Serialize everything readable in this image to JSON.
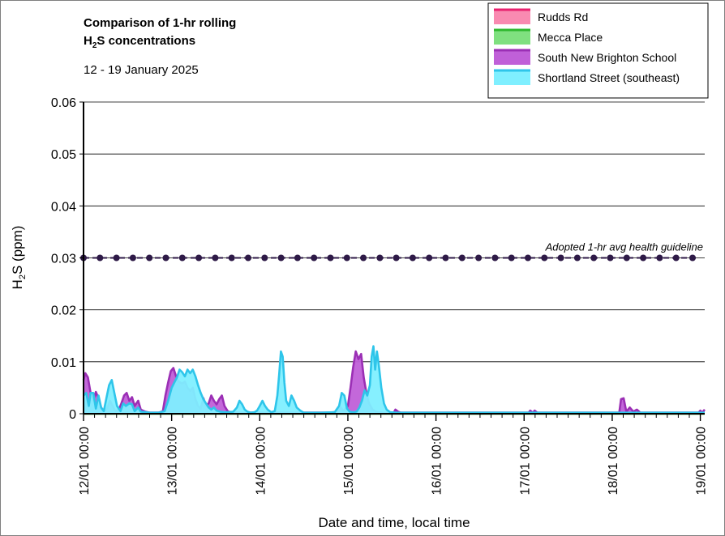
{
  "chart_data": {
    "type": "area",
    "title_line1": "Comparison of 1-hr rolling",
    "title_line2_prefix": "H",
    "title_line2_sub": "2",
    "title_line2_suffix": "S concentrations",
    "subtitle": "12 - 19 January 2025",
    "xlabel": "Date and time, local time",
    "ylabel_prefix": "H",
    "ylabel_sub": "2",
    "ylabel_suffix": "S (ppm)",
    "xlim": [
      0,
      7.05
    ],
    "ylim": [
      0,
      0.06
    ],
    "yticks": [
      0,
      0.01,
      0.02,
      0.03,
      0.04,
      0.05,
      0.06
    ],
    "ytick_labels": [
      "0",
      "0.01",
      "0.02",
      "0.03",
      "0.04",
      "0.05",
      "0.06"
    ],
    "xticks": [
      0,
      1,
      2,
      3,
      4,
      5,
      6,
      7
    ],
    "xtick_labels": [
      "12/01 00:00",
      "13/01 00:00",
      "14/01 00:00",
      "15/01 00:00",
      "16/01 00:00",
      "17/01 00:00",
      "18/01 00:00",
      "19/01 00:00"
    ],
    "grid": "horizontal",
    "legend_position": "top-right",
    "guideline": {
      "label": "Adopted 1-hr avg health guideline",
      "value": 0.03,
      "color": "#2e1a47"
    },
    "series": [
      {
        "name": "Rudds Rd",
        "fill": "#f98ab1",
        "stroke": "#e8216e",
        "points": [
          [
            0,
            0.0002
          ],
          [
            7.05,
            0.0002
          ]
        ]
      },
      {
        "name": "Mecca Place",
        "fill": "#7fe07f",
        "stroke": "#2eb82e",
        "points": [
          [
            0,
            0
          ],
          [
            7.05,
            0
          ]
        ]
      },
      {
        "name": "South New Brighton School",
        "fill": "#c060d8",
        "stroke": "#9b2fb5",
        "points": [
          [
            0,
            0.0065
          ],
          [
            0.02,
            0.0078
          ],
          [
            0.05,
            0.007
          ],
          [
            0.08,
            0.004
          ],
          [
            0.11,
            0.0025
          ],
          [
            0.14,
            0.0042
          ],
          [
            0.17,
            0.003
          ],
          [
            0.2,
            0.0012
          ],
          [
            0.23,
            0.0005
          ],
          [
            0.27,
            0.001
          ],
          [
            0.3,
            0.0025
          ],
          [
            0.33,
            0.0015
          ],
          [
            0.36,
            0.0005
          ],
          [
            0.4,
            0.0008
          ],
          [
            0.43,
            0.002
          ],
          [
            0.46,
            0.0035
          ],
          [
            0.49,
            0.004
          ],
          [
            0.52,
            0.0025
          ],
          [
            0.55,
            0.0032
          ],
          [
            0.58,
            0.0015
          ],
          [
            0.62,
            0.0025
          ],
          [
            0.65,
            0.0008
          ],
          [
            0.7,
            0.0004
          ],
          [
            0.75,
            0.0002
          ],
          [
            0.85,
            0.0002
          ],
          [
            0.9,
            0.0005
          ],
          [
            0.93,
            0.0035
          ],
          [
            0.96,
            0.006
          ],
          [
            0.99,
            0.0082
          ],
          [
            1.02,
            0.0088
          ],
          [
            1.05,
            0.0072
          ],
          [
            1.08,
            0.0062
          ],
          [
            1.12,
            0.0058
          ],
          [
            1.15,
            0.0062
          ],
          [
            1.18,
            0.005
          ],
          [
            1.21,
            0.0044
          ],
          [
            1.24,
            0.005
          ],
          [
            1.27,
            0.0028
          ],
          [
            1.3,
            0.0015
          ],
          [
            1.33,
            0.001
          ],
          [
            1.36,
            0.003
          ],
          [
            1.39,
            0.0015
          ],
          [
            1.42,
            0.002
          ],
          [
            1.45,
            0.0035
          ],
          [
            1.48,
            0.0025
          ],
          [
            1.51,
            0.0018
          ],
          [
            1.54,
            0.0028
          ],
          [
            1.57,
            0.0035
          ],
          [
            1.6,
            0.0015
          ],
          [
            1.64,
            0.0004
          ],
          [
            1.75,
            0.0002
          ],
          [
            2.0,
            0.0002
          ],
          [
            2.2,
            0.0002
          ],
          [
            2.5,
            0.0002
          ],
          [
            2.8,
            0.0002
          ],
          [
            2.88,
            0.0004
          ],
          [
            2.92,
            0.0012
          ],
          [
            2.95,
            0.0005
          ],
          [
            3.0,
            0.0015
          ],
          [
            3.03,
            0.005
          ],
          [
            3.06,
            0.009
          ],
          [
            3.09,
            0.012
          ],
          [
            3.12,
            0.0105
          ],
          [
            3.15,
            0.0115
          ],
          [
            3.18,
            0.007
          ],
          [
            3.21,
            0.004
          ],
          [
            3.24,
            0.002
          ],
          [
            3.28,
            0.0008
          ],
          [
            3.32,
            0.0004
          ],
          [
            3.4,
            0.0002
          ],
          [
            3.52,
            0.0002
          ],
          [
            3.54,
            0.0008
          ],
          [
            3.57,
            0.0004
          ],
          [
            3.6,
            0.0002
          ],
          [
            4.5,
            0.0002
          ],
          [
            5.05,
            0.0002
          ],
          [
            5.07,
            0.0006
          ],
          [
            5.1,
            0.0002
          ],
          [
            5.12,
            0.0006
          ],
          [
            5.15,
            0.0002
          ],
          [
            5.2,
            0.0002
          ],
          [
            5.95,
            0.0002
          ],
          [
            6.08,
            0.0002
          ],
          [
            6.1,
            0.0028
          ],
          [
            6.13,
            0.003
          ],
          [
            6.16,
            0.0004
          ],
          [
            6.2,
            0.0012
          ],
          [
            6.24,
            0.0004
          ],
          [
            6.28,
            0.0008
          ],
          [
            6.32,
            0.0002
          ],
          [
            6.9,
            0.0002
          ],
          [
            6.98,
            0.0002
          ],
          [
            7.0,
            0.0006
          ],
          [
            7.02,
            0.0002
          ],
          [
            7.05,
            0.0008
          ]
        ]
      },
      {
        "name": "Shortland Street (southeast)",
        "fill": "#7fefff",
        "stroke": "#2ec5ea",
        "points": [
          [
            0,
            0.0035
          ],
          [
            0.03,
            0.004
          ],
          [
            0.06,
            0.0015
          ],
          [
            0.08,
            0.004
          ],
          [
            0.11,
            0.004
          ],
          [
            0.14,
            0.001
          ],
          [
            0.17,
            0.0035
          ],
          [
            0.2,
            0.0012
          ],
          [
            0.23,
            0.0005
          ],
          [
            0.26,
            0.003
          ],
          [
            0.29,
            0.0055
          ],
          [
            0.32,
            0.0065
          ],
          [
            0.35,
            0.004
          ],
          [
            0.38,
            0.0015
          ],
          [
            0.42,
            0.0005
          ],
          [
            0.45,
            0.002
          ],
          [
            0.48,
            0.0015
          ],
          [
            0.52,
            0.002
          ],
          [
            0.55,
            0.0018
          ],
          [
            0.58,
            0.0005
          ],
          [
            0.62,
            0.0012
          ],
          [
            0.65,
            0.0004
          ],
          [
            0.7,
            0.0003
          ],
          [
            0.75,
            0.0002
          ],
          [
            0.85,
            0.0002
          ],
          [
            0.92,
            0.0005
          ],
          [
            0.96,
            0.0025
          ],
          [
            1.0,
            0.005
          ],
          [
            1.03,
            0.006
          ],
          [
            1.06,
            0.007
          ],
          [
            1.09,
            0.0085
          ],
          [
            1.12,
            0.008
          ],
          [
            1.15,
            0.0072
          ],
          [
            1.18,
            0.0085
          ],
          [
            1.21,
            0.0078
          ],
          [
            1.24,
            0.0085
          ],
          [
            1.27,
            0.0072
          ],
          [
            1.3,
            0.0055
          ],
          [
            1.33,
            0.004
          ],
          [
            1.36,
            0.0028
          ],
          [
            1.39,
            0.002
          ],
          [
            1.42,
            0.0012
          ],
          [
            1.45,
            0.0008
          ],
          [
            1.48,
            0.0012
          ],
          [
            1.51,
            0.0006
          ],
          [
            1.55,
            0.0004
          ],
          [
            1.6,
            0.0003
          ],
          [
            1.65,
            0.0003
          ],
          [
            1.7,
            0.0004
          ],
          [
            1.74,
            0.0012
          ],
          [
            1.77,
            0.0025
          ],
          [
            1.8,
            0.0018
          ],
          [
            1.83,
            0.0008
          ],
          [
            1.86,
            0.0004
          ],
          [
            1.9,
            0.0002
          ],
          [
            1.94,
            0.0003
          ],
          [
            1.97,
            0.0006
          ],
          [
            2.0,
            0.0015
          ],
          [
            2.03,
            0.0025
          ],
          [
            2.06,
            0.0015
          ],
          [
            2.09,
            0.0008
          ],
          [
            2.13,
            0.0003
          ],
          [
            2.17,
            0.0005
          ],
          [
            2.2,
            0.0035
          ],
          [
            2.22,
            0.0075
          ],
          [
            2.24,
            0.012
          ],
          [
            2.26,
            0.011
          ],
          [
            2.28,
            0.006
          ],
          [
            2.3,
            0.0025
          ],
          [
            2.33,
            0.0015
          ],
          [
            2.36,
            0.0035
          ],
          [
            2.39,
            0.0025
          ],
          [
            2.42,
            0.0012
          ],
          [
            2.46,
            0.0006
          ],
          [
            2.5,
            0.0002
          ],
          [
            2.7,
            0.0002
          ],
          [
            2.85,
            0.0003
          ],
          [
            2.9,
            0.0015
          ],
          [
            2.93,
            0.004
          ],
          [
            2.96,
            0.0035
          ],
          [
            2.99,
            0.001
          ],
          [
            3.02,
            0.0004
          ],
          [
            3.06,
            0.0003
          ],
          [
            3.1,
            0.0004
          ],
          [
            3.13,
            0.0012
          ],
          [
            3.16,
            0.0025
          ],
          [
            3.19,
            0.0045
          ],
          [
            3.22,
            0.0035
          ],
          [
            3.25,
            0.0055
          ],
          [
            3.27,
            0.011
          ],
          [
            3.29,
            0.013
          ],
          [
            3.31,
            0.0085
          ],
          [
            3.33,
            0.012
          ],
          [
            3.35,
            0.0095
          ],
          [
            3.38,
            0.005
          ],
          [
            3.41,
            0.002
          ],
          [
            3.44,
            0.0008
          ],
          [
            3.48,
            0.0003
          ],
          [
            3.55,
            0.0002
          ],
          [
            4.5,
            0.0002
          ],
          [
            6.0,
            0.0002
          ],
          [
            6.8,
            0.0002
          ],
          [
            7.05,
            0.0002
          ]
        ]
      }
    ]
  }
}
